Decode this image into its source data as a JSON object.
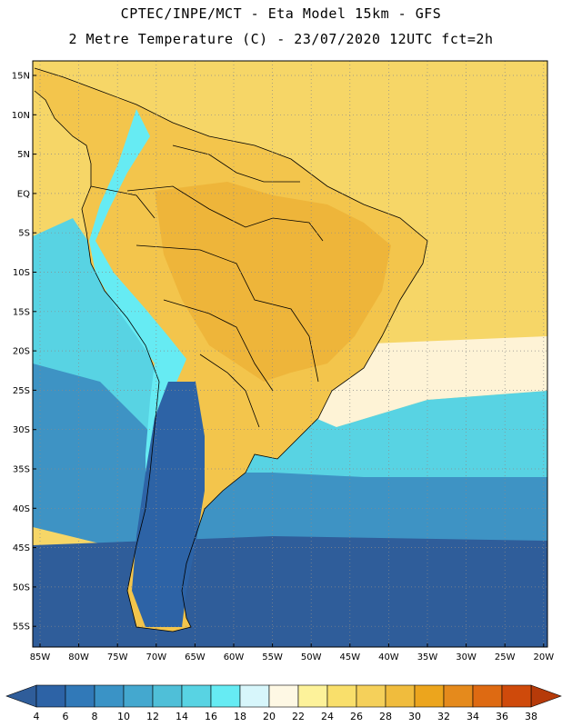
{
  "title_line1": "CPTEC/INPE/MCT -  Eta Model 15km - GFS",
  "title_line2": "2 Metre Temperature (C) - 23/07/2020 12UTC fct=2h",
  "lat_labels": [
    "15N",
    "10N",
    "5N",
    "EQ",
    "5S",
    "10S",
    "15S",
    "20S",
    "25S",
    "30S",
    "35S",
    "40S",
    "45S",
    "50S",
    "55S"
  ],
  "lon_labels": [
    "85W",
    "80W",
    "75W",
    "70W",
    "65W",
    "60W",
    "55W",
    "50W",
    "45W",
    "40W",
    "35W",
    "30W",
    "25W",
    "20W"
  ],
  "colorbar": {
    "values": [
      4,
      6,
      8,
      10,
      12,
      14,
      16,
      18,
      20,
      22,
      24,
      26,
      28,
      30,
      32,
      34,
      36,
      38
    ],
    "colors": [
      "#2d63a6",
      "#3179b8",
      "#3a93c6",
      "#44a8cf",
      "#4fbfd8",
      "#58d3e3",
      "#66ebf3",
      "#d7f6fb",
      "#fef8e4",
      "#fdf29a",
      "#f9df6b",
      "#f5d05a",
      "#f0bc3d",
      "#eca51d",
      "#e58a1c",
      "#de6a12",
      "#cf4a0b"
    ],
    "low_color": "#2f5d9a",
    "high_color": "#b63a09"
  },
  "colors": {
    "ocean_south": "#2f5d9a",
    "ocean_mid": "#3e93c4",
    "ocean_cool": "#58d3e3",
    "ocean_subtrop": "#fef3d6",
    "ocean_warm": "#f6d667",
    "land_hot": "#eeb53a",
    "land_warm": "#f3c54c",
    "andes_cold": "#66ebf3",
    "patagonia": "#2d63a6",
    "border": "#000000"
  }
}
